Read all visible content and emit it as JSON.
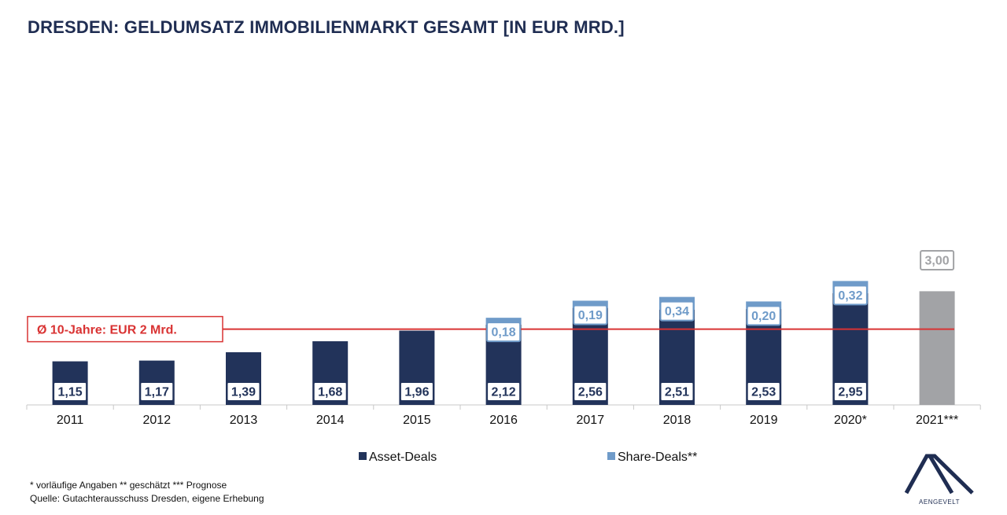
{
  "title": "DRESDEN: GELDUMSATZ IMMOBILIENMARKT GESAMT [IN EUR MRD.]",
  "footnotes": {
    "line1": "* vorläufige Angaben  ** geschätzt *** Prognose",
    "line2": "Quelle: Gutachterausschuss Dresden, eigene Erhebung"
  },
  "logo": {
    "text": "AENGEVELT",
    "icon": "aengevelt-logo-icon"
  },
  "chart_data": {
    "type": "bar",
    "stacked": true,
    "categories": [
      "2011",
      "2012",
      "2013",
      "2014",
      "2015",
      "2016",
      "2017",
      "2018",
      "2019",
      "2020*",
      "2021***"
    ],
    "series": [
      {
        "name": "Asset-Deals",
        "color": "#22335a",
        "values": [
          1.15,
          1.17,
          1.39,
          1.68,
          1.96,
          2.12,
          2.56,
          2.51,
          2.53,
          2.95,
          null
        ],
        "labels": [
          "1,15",
          "1,17",
          "1,39",
          "1,68",
          "1,96",
          "2,12",
          "2,56",
          "2,51",
          "2,53",
          "2,95",
          ""
        ]
      },
      {
        "name": "Share-Deals**",
        "color": "#6f9bc9",
        "values": [
          null,
          null,
          null,
          null,
          null,
          0.18,
          0.19,
          0.34,
          0.2,
          0.32,
          null
        ],
        "labels": [
          "",
          "",
          "",
          "",
          "",
          "0,18",
          "0,19",
          "0,34",
          "0,20",
          "0,32",
          ""
        ]
      },
      {
        "name": "Prognose",
        "color": "#a2a3a6",
        "values": [
          null,
          null,
          null,
          null,
          null,
          null,
          null,
          null,
          null,
          null,
          3.0
        ],
        "labels": [
          "",
          "",
          "",
          "",
          "",
          "",
          "",
          "",
          "",
          "",
          "3,00"
        ]
      }
    ],
    "reference_line": {
      "value": 2.0,
      "label": "Ø 10-Jahre: EUR 2 Mrd.",
      "color": "#d93333"
    },
    "ylim": [
      0,
      3.3
    ],
    "legend": {
      "position": "bottom",
      "items": [
        {
          "label": "Asset-Deals",
          "color": "#22335a"
        },
        {
          "label": "Share-Deals**",
          "color": "#6f9bc9"
        }
      ]
    },
    "grid": false
  }
}
